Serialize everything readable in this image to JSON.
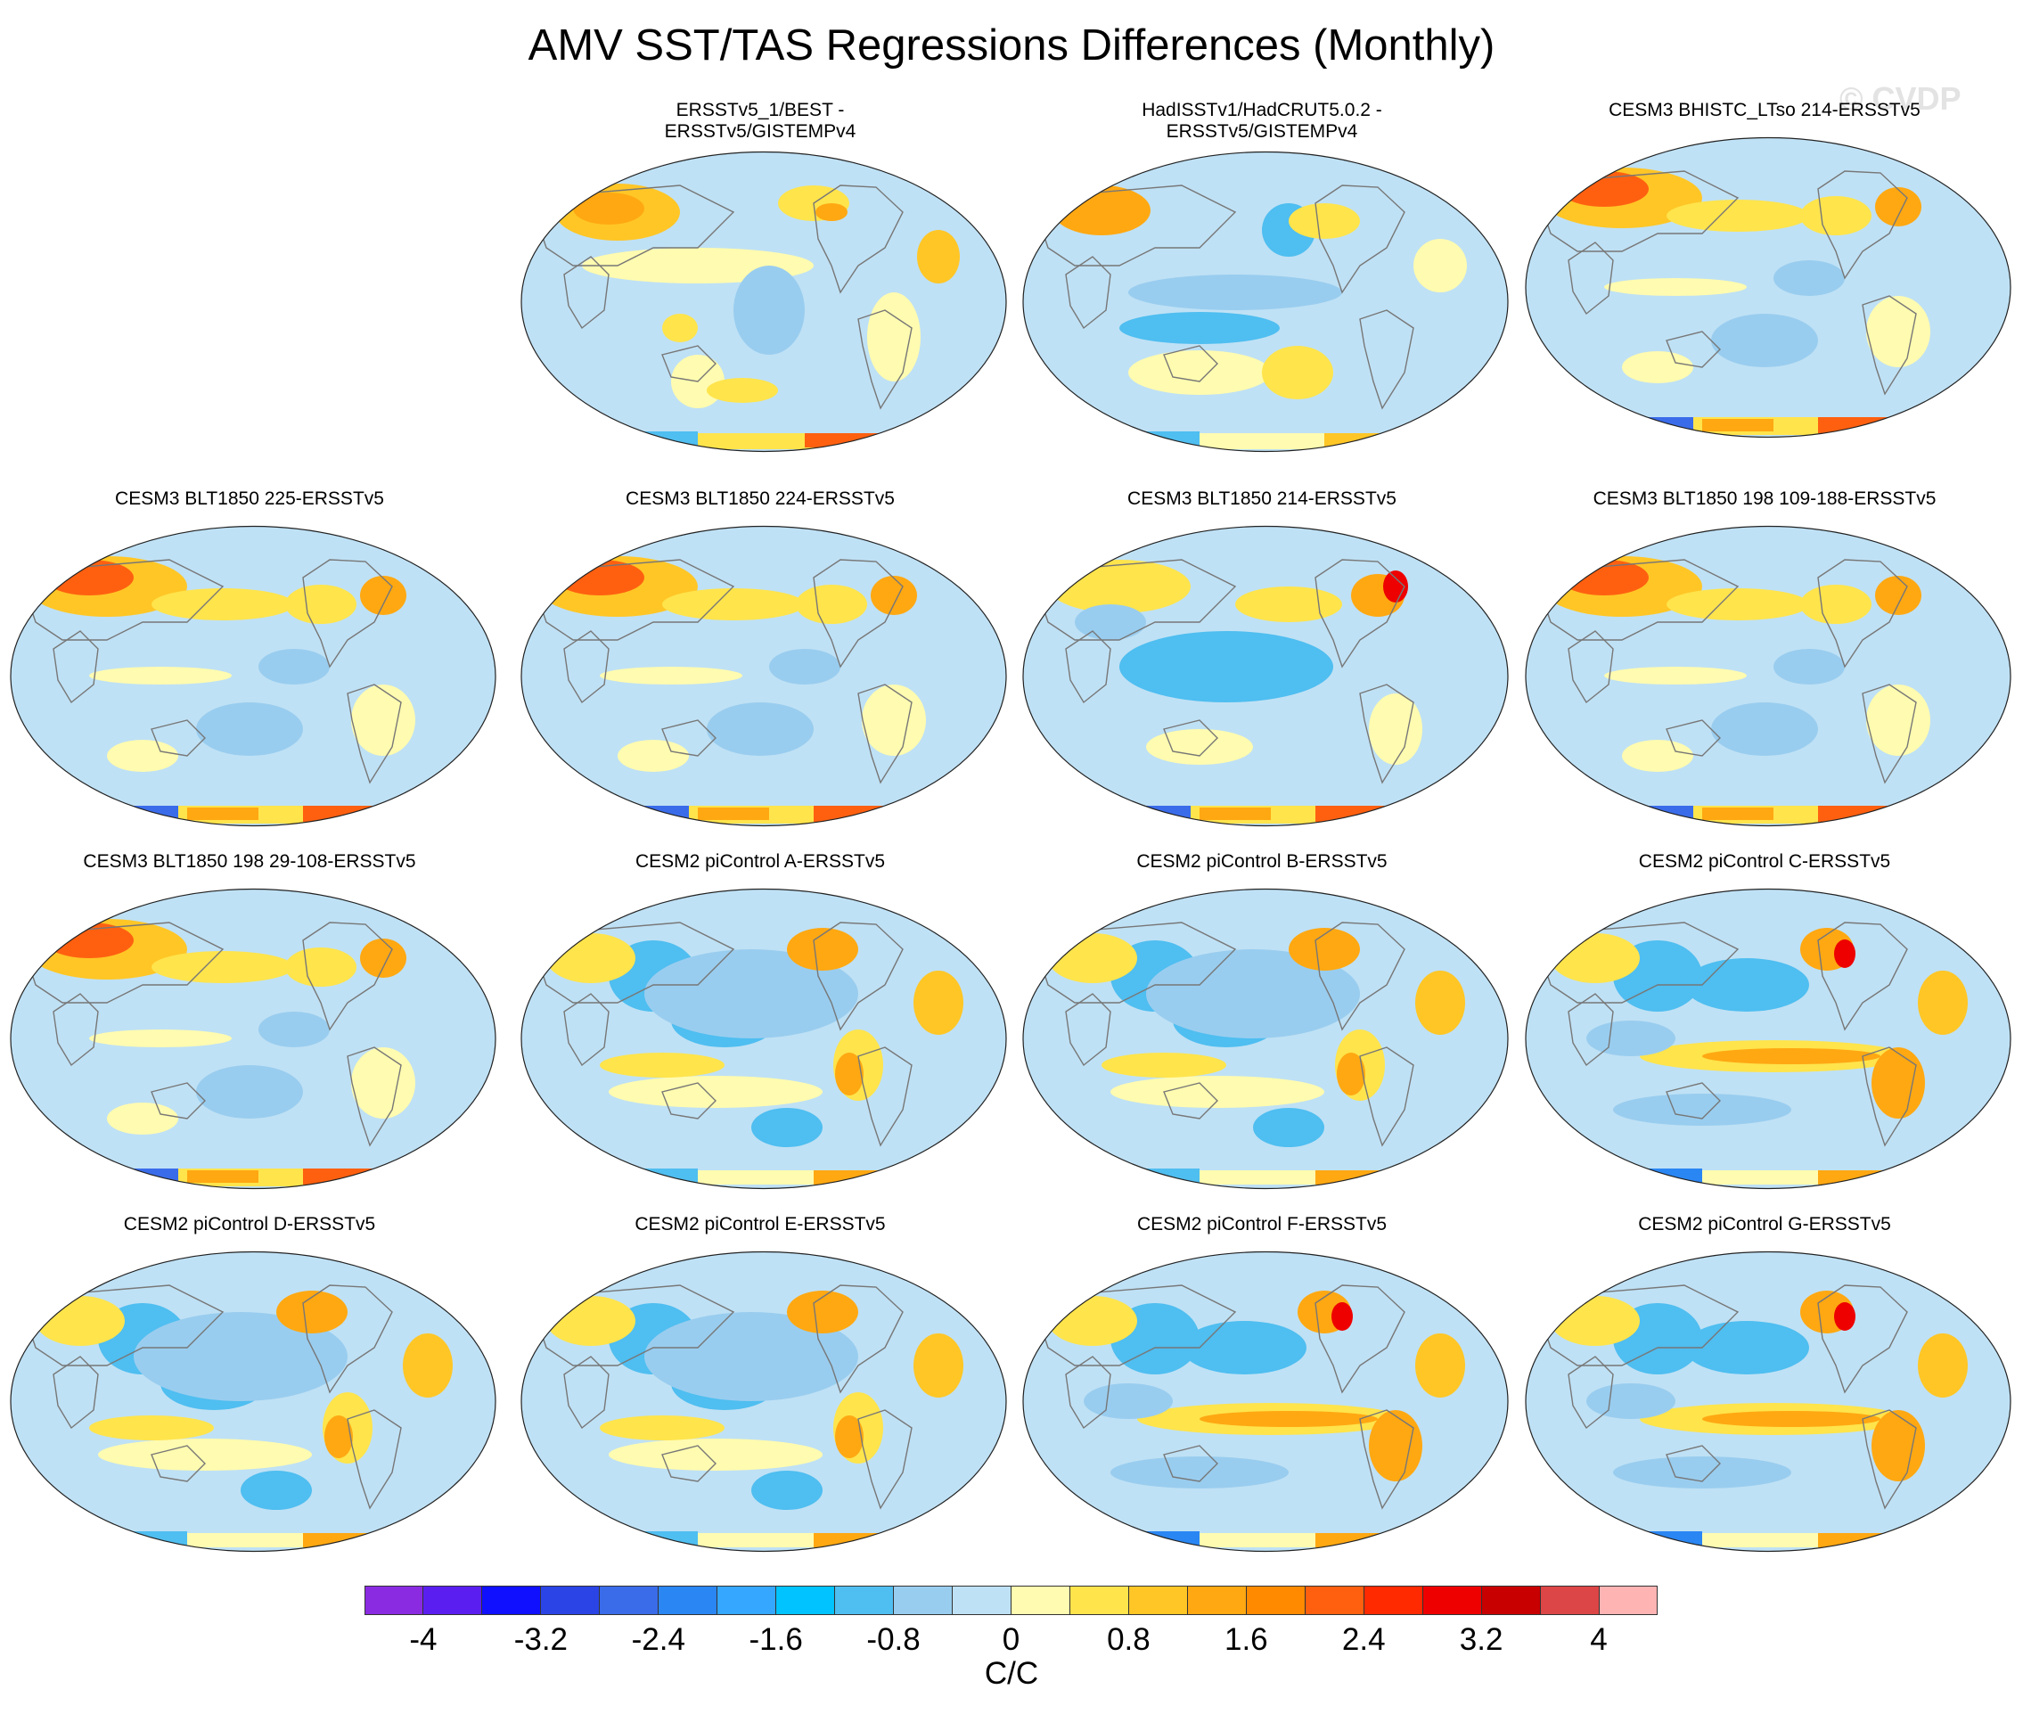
{
  "title": "AMV SST/TAS Regressions Differences (Monthly)",
  "watermark": "© CVDP",
  "panels": [
    {
      "title_lines": [
        "ERSSTv5_1/BEST -",
        "ERSSTv5/GISTEMPv4"
      ],
      "pattern": "obs1"
    },
    {
      "title_lines": [
        "HadISSTv1/HadCRUT5.0.2 -",
        "ERSSTv5/GISTEMPv4"
      ],
      "pattern": "obs2"
    },
    {
      "title_lines": [
        "CESM3 BHISTC_LTso 214-ERSSTv5"
      ],
      "pattern": "cesm3"
    },
    {
      "title_lines": [
        "CESM3 BLT1850 225-ERSSTv5"
      ],
      "pattern": "cesm3"
    },
    {
      "title_lines": [
        "CESM3 BLT1850 224-ERSSTv5"
      ],
      "pattern": "cesm3"
    },
    {
      "title_lines": [
        "CESM3 BLT1850 214-ERSSTv5"
      ],
      "pattern": "cesm3b"
    },
    {
      "title_lines": [
        "CESM3 BLT1850 198 109-188-ERSSTv5"
      ],
      "pattern": "cesm3"
    },
    {
      "title_lines": [
        "CESM3 BLT1850 198 29-108-ERSSTv5"
      ],
      "pattern": "cesm3"
    },
    {
      "title_lines": [
        "CESM2 piControl A-ERSSTv5"
      ],
      "pattern": "cesm2"
    },
    {
      "title_lines": [
        "CESM2 piControl B-ERSSTv5"
      ],
      "pattern": "cesm2"
    },
    {
      "title_lines": [
        "CESM2 piControl C-ERSSTv5"
      ],
      "pattern": "cesm2b"
    },
    {
      "title_lines": [
        "CESM2 piControl D-ERSSTv5"
      ],
      "pattern": "cesm2"
    },
    {
      "title_lines": [
        "CESM2 piControl E-ERSSTv5"
      ],
      "pattern": "cesm2"
    },
    {
      "title_lines": [
        "CESM2 piControl F-ERSSTv5"
      ],
      "pattern": "cesm2b"
    },
    {
      "title_lines": [
        "CESM2 piControl G-ERSSTv5"
      ],
      "pattern": "cesm2b"
    }
  ],
  "colorbar": {
    "colors": [
      "#8a2be2",
      "#5a1ff0",
      "#1010ff",
      "#2a44e6",
      "#3a6cea",
      "#2a86f3",
      "#35a7ff",
      "#00c3ff",
      "#4fbef0",
      "#99cdef",
      "#bfe1f5",
      "#fffbb0",
      "#ffe44c",
      "#ffc626",
      "#ffa812",
      "#ff8a00",
      "#ff6010",
      "#ff2a00",
      "#ee0000",
      "#c80000",
      "#dc4646",
      "#ffb4b4"
    ],
    "tick_labels": [
      "-4",
      "-3.2",
      "-2.4",
      "-1.6",
      "-0.8",
      "0",
      "0.8",
      "1.6",
      "2.4",
      "3.2",
      "4"
    ],
    "units": "C/C",
    "range": [
      -4.4,
      4.4
    ]
  }
}
